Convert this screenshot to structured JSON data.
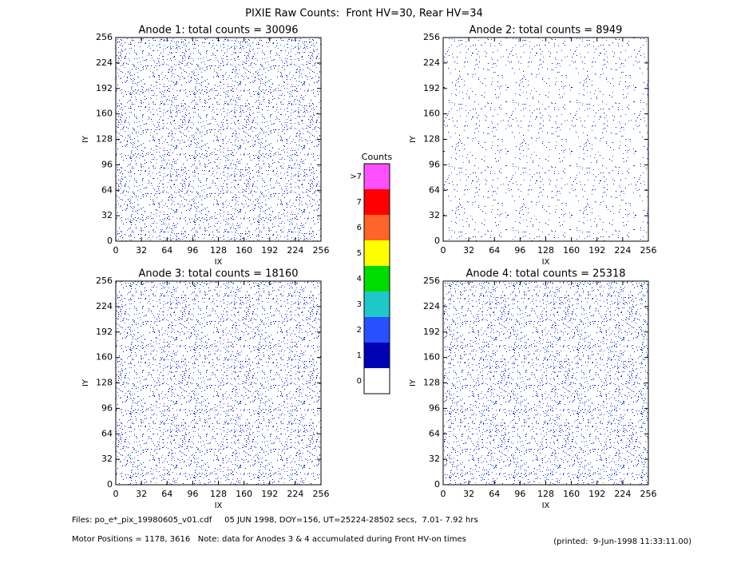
{
  "title": "PIXIE Raw Counts:  Front HV=30, Rear HV=34",
  "chart_data": [
    {
      "type": "heatmap",
      "title": "Anode 1: total counts = 30096",
      "xlabel": "IX",
      "ylabel": "IY",
      "xlim": [
        0,
        256
      ],
      "ylim": [
        0,
        256
      ],
      "xticks": [
        0,
        32,
        64,
        96,
        128,
        160,
        192,
        224,
        256
      ],
      "yticks": [
        0,
        32,
        64,
        96,
        128,
        160,
        192,
        224,
        256
      ]
    },
    {
      "type": "heatmap",
      "title": "Anode 2: total counts = 8949",
      "xlabel": "IX",
      "ylabel": "IY",
      "xlim": [
        0,
        256
      ],
      "ylim": [
        0,
        256
      ],
      "xticks": [
        0,
        32,
        64,
        96,
        128,
        160,
        192,
        224,
        256
      ],
      "yticks": [
        0,
        32,
        64,
        96,
        128,
        160,
        192,
        224,
        256
      ]
    },
    {
      "type": "heatmap",
      "title": "Anode 3: total counts = 18160",
      "xlabel": "IX",
      "ylabel": "IY",
      "xlim": [
        0,
        256
      ],
      "ylim": [
        0,
        256
      ],
      "xticks": [
        0,
        32,
        64,
        96,
        128,
        160,
        192,
        224,
        256
      ],
      "yticks": [
        0,
        32,
        64,
        96,
        128,
        160,
        192,
        224,
        256
      ]
    },
    {
      "type": "heatmap",
      "title": "Anode 4: total counts = 25318",
      "xlabel": "IX",
      "ylabel": "IY",
      "xlim": [
        0,
        256
      ],
      "ylim": [
        0,
        256
      ],
      "xticks": [
        0,
        32,
        64,
        96,
        128,
        160,
        192,
        224,
        256
      ],
      "yticks": [
        0,
        32,
        64,
        96,
        128,
        160,
        192,
        224,
        256
      ]
    }
  ],
  "colorbar": {
    "title": "Counts",
    "labels": [
      "0",
      "1",
      "2",
      "3",
      "4",
      "5",
      "6",
      "7",
      ">7"
    ],
    "colors": [
      "#ffffff",
      "#0000b4",
      "#2850ff",
      "#1ec8c8",
      "#00dc00",
      "#ffff00",
      "#ff6428",
      "#ff0000",
      "#ff50ff"
    ]
  },
  "footer": {
    "files": "Files: po_e*_pix_19980605_v01.cdf     05 JUN 1998, DOY=156, UT=25224-28502 secs,  7.01- 7.92 hrs",
    "motor": "Motor Positions = 1178, 3616   Note: data for Anodes 3 & 4 accumulated during Front HV-on times",
    "printed": "(printed:  9-Jun-1998 11:33:11.00)"
  }
}
